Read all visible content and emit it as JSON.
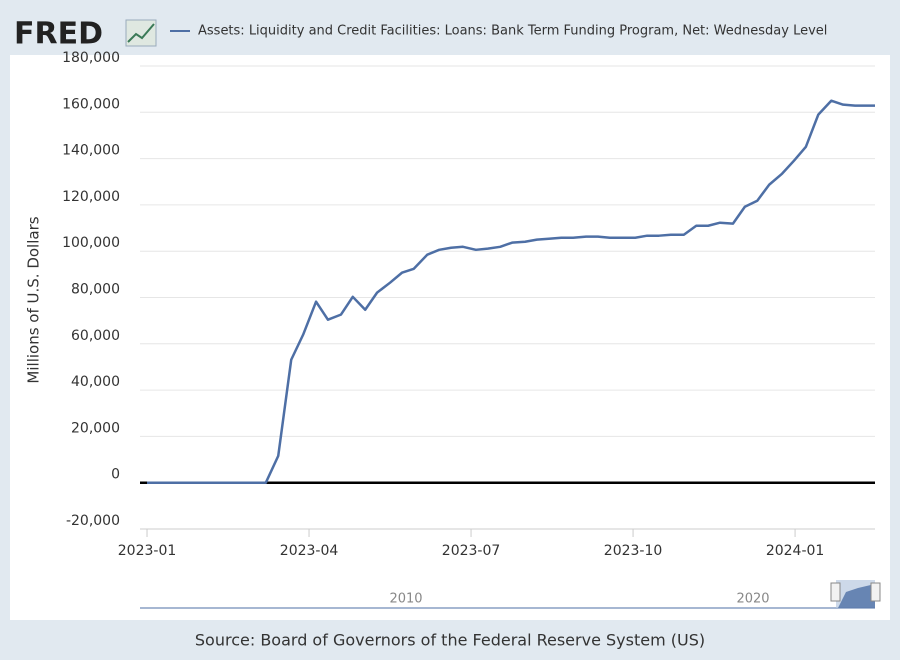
{
  "logo": "FRED",
  "chart_data": {
    "type": "line",
    "y_label": "Millions of U.S. Dollars",
    "x": [
      0.0,
      0.46,
      0.92,
      1.38,
      1.84,
      2.2,
      2.43,
      2.67,
      2.89,
      3.13,
      3.35,
      3.59,
      3.81,
      4.04,
      4.26,
      4.5,
      4.72,
      4.94,
      5.19,
      5.41,
      5.63,
      5.85,
      6.09,
      6.31,
      6.54,
      6.76,
      7.0,
      7.22,
      7.44,
      7.67,
      7.89,
      8.13,
      8.35,
      8.57,
      8.8,
      9.04,
      9.26,
      9.48,
      9.7,
      9.94,
      10.17,
      10.39,
      10.61,
      10.85,
      11.07,
      11.3,
      11.52,
      11.76,
      11.98,
      12.2,
      12.43,
      12.67,
      12.89,
      13.11,
      13.35,
      13.48
    ],
    "series": [
      {
        "name": "Assets: Liquidity and Credit Facilities: Loans: Bank Term Funding Program, Net: Wednesday Level",
        "color": "#4e6fa5",
        "values": [
          0,
          0,
          0,
          0,
          0,
          0,
          11600,
          53100,
          63900,
          78200,
          70400,
          72600,
          80300,
          74700,
          82100,
          86400,
          90700,
          92400,
          98500,
          100600,
          101500,
          101900,
          100600,
          101100,
          101900,
          103700,
          104100,
          105000,
          105400,
          105800,
          105800,
          106300,
          106300,
          105800,
          105800,
          105800,
          106700,
          106700,
          107100,
          107100,
          111000,
          111000,
          112300,
          111900,
          119200,
          121800,
          128700,
          133500,
          139100,
          145100,
          159000,
          165000,
          163300,
          162900,
          162900,
          162900
        ]
      }
    ],
    "xlim": [
      -0.13,
      13.48
    ],
    "xticks": [
      {
        "value": 0,
        "label": "2023-01"
      },
      {
        "value": 3,
        "label": "2023-04"
      },
      {
        "value": 6,
        "label": "2023-07"
      },
      {
        "value": 9,
        "label": "2023-10"
      },
      {
        "value": 12,
        "label": "2024-01"
      }
    ],
    "ylim": [
      -20000,
      180000
    ],
    "yticks": [
      {
        "value": -20000,
        "label": "-20,000"
      },
      0,
      {
        "value": 20000,
        "label": "20,000"
      },
      {
        "value": 40000,
        "label": "40,000"
      },
      {
        "value": 60000,
        "label": "60,000"
      },
      {
        "value": 80000,
        "label": "80,000"
      },
      {
        "value": 100000,
        "label": "100,000"
      },
      {
        "value": 120000,
        "label": "120,000"
      },
      {
        "value": 140000,
        "label": "140,000"
      },
      {
        "value": 160000,
        "label": "160,000"
      },
      {
        "value": 180000,
        "label": "180,000"
      }
    ],
    "grid": true
  },
  "navigator": {
    "labels": [
      "2010",
      "2020"
    ]
  },
  "source": "Source: Board of Governors of the Federal Reserve System (US)"
}
